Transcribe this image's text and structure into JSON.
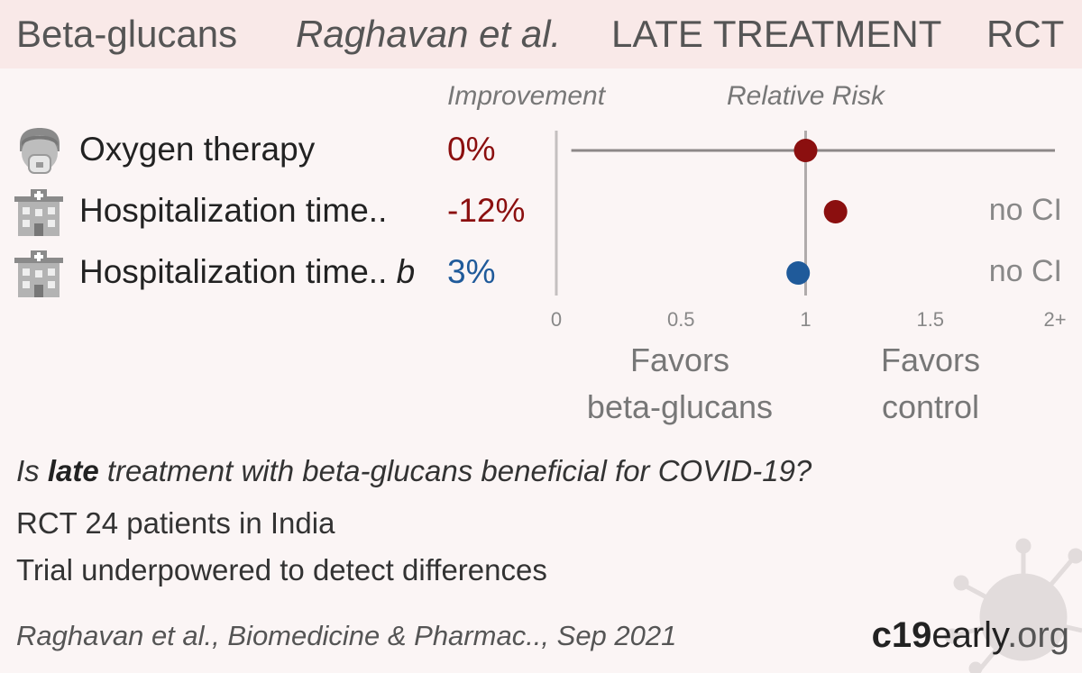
{
  "header": {
    "treatment": "Beta-glucans",
    "authors": "Raghavan et al.",
    "stage": "LATE TREATMENT",
    "design": "RCT"
  },
  "columns": {
    "improvement": "Improvement",
    "relative_risk": "Relative Risk"
  },
  "rows": [
    {
      "label": "Oxygen therapy",
      "suffix": "",
      "improvement": "0%",
      "icon": "patient-oxygen-icon",
      "ci_note": ""
    },
    {
      "label": "Hospitalization time..",
      "suffix": "",
      "improvement": "-12%",
      "icon": "hospital-icon",
      "ci_note": "no CI"
    },
    {
      "label": "Hospitalization time..",
      "suffix": "b",
      "improvement": "3%",
      "icon": "hospital-icon",
      "ci_note": "no CI"
    }
  ],
  "favors": {
    "left_line1": "Favors",
    "left_line2": "beta-glucans",
    "right_line1": "Favors",
    "right_line2": "control"
  },
  "chart_data": {
    "type": "scatter",
    "subtype": "forest-plot",
    "x_ticks": [
      "0",
      "0.5",
      "1",
      "1.5",
      "2+"
    ],
    "xlim": [
      0,
      2
    ],
    "reference_line": 1,
    "points": [
      {
        "outcome": "Oxygen therapy",
        "rr": 1.0,
        "ci": [
          0.06,
          2.0
        ],
        "color": "#8b0f0f"
      },
      {
        "outcome": "Hospitalization time..",
        "rr": 1.12,
        "ci": null,
        "color": "#8b0f0f"
      },
      {
        "outcome": "Hospitalization time.. b",
        "rr": 0.97,
        "ci": null,
        "color": "#1f5a9a"
      }
    ]
  },
  "footer": {
    "question_pre": "Is ",
    "question_bold": "late",
    "question_post": " treatment with beta-glucans beneficial for COVID-19?",
    "summary": "RCT 24 patients in India",
    "note": "Trial underpowered to detect differences",
    "citation": "Raghavan et al., Biomedicine & Pharmac.., Sep 2021",
    "brand_part1": "c19",
    "brand_part2": "early",
    "brand_part3": ".org"
  },
  "colors": {
    "harm": "#8b0f0f",
    "benefit": "#1f5a9a",
    "title_bg": "#f9e9e8",
    "page_bg": "#fbf5f5"
  }
}
